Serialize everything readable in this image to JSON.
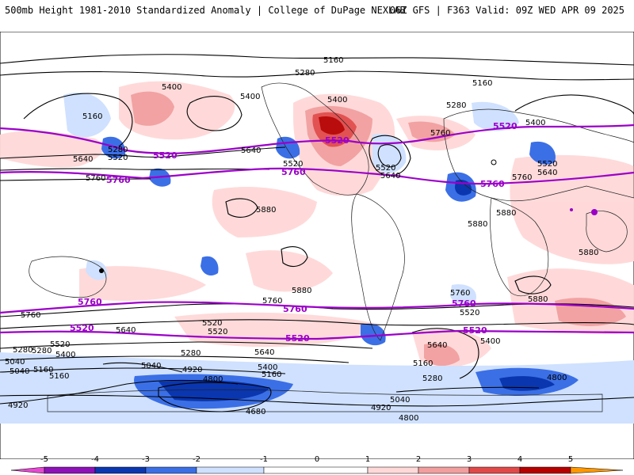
{
  "header": {
    "left": "500mb Height 1981-2010 Standardized Anomaly | College of DuPage NEXLAB",
    "right": "06Z GFS | F363 Valid: 09Z WED APR 09 2025"
  },
  "colors": {
    "neg5": "#e44ad1",
    "neg4": "#8d11b7",
    "neg3": "#0a36b0",
    "neg2": "#3b6fe6",
    "neg1": "#cfe1ff",
    "zero": "#ffffff",
    "pos1": "#ffd8d8",
    "pos2": "#f29e9e",
    "pos3": "#e14949",
    "pos4": "#b60000",
    "pos5": "#ff9800",
    "purple_contour": "#9b00c8",
    "black_contour": "#000000"
  },
  "map_labels": {
    "c5160_n": "5160",
    "c5280_n": "5280",
    "c5400_na": "5400",
    "c5400_nb": "5400",
    "c5400_na2": "5400",
    "c5160_w": "5160",
    "c5280_w": "5280",
    "c5520_w": "5520",
    "c5640_w": "5640",
    "c5760_w": "5760",
    "p5520_a": "5520",
    "p5760_a": "5760",
    "p5520_b": "5520",
    "p5760_b": "5760",
    "c5520_b": "5520",
    "c5640_b": "5640",
    "c5520_c": "5520",
    "c5640_c": "5640",
    "p5520_c": "5520",
    "c5160_ne": "5160",
    "c5280_ne": "5280",
    "c5760_e": "5760",
    "p5520_e": "5520",
    "c5400_e": "5400",
    "c5520_e": "5520",
    "c5640_e": "5640",
    "c5760_e2": "5760",
    "p5760_e": "5760",
    "c5880_a": "5880",
    "c5880_b": "5880",
    "c5880_c": "5880",
    "c5880_d": "5880",
    "c5880_e": "5880",
    "c5880_f": "5880",
    "p5760_s": "5760",
    "c5760_s": "5760",
    "p5520_s": "5520",
    "c5640_s": "5640",
    "c5520_s2": "5520",
    "c5760_s2": "5760",
    "p5760_s2": "5760",
    "c5760_s3": "5760",
    "p5760_s3": "5760",
    "c5760_s4": "5760",
    "c5520_s3": "5520",
    "p5520_s2": "5520",
    "p5520_s3": "5520",
    "c5400_s": "5400",
    "c5640_s2": "5640",
    "c5280_s": "5280",
    "c5160_s": "5160",
    "c5040_s": "5040",
    "c5520_s4": "5520",
    "c5400_s2": "5400",
    "c5280_s2": "5280",
    "c5160_s2": "5160",
    "c5040_s2": "5040",
    "c5280_s3": "5280",
    "c5160_s3": "5160",
    "c5040_s3": "5040",
    "c4920_s": "4920",
    "c4800_s": "4800",
    "c4920_w": "4920",
    "c4680_s": "4680",
    "c4920_s2": "4920",
    "c4800_s2": "4800",
    "c4800_se": "4800",
    "c5400_s3": "5400",
    "c5640_s3": "5640",
    "c5280_s4": "5280",
    "c5160_s4": "5160",
    "c5040_s4": "5040",
    "c5520_s5": "5520"
  },
  "colorbar": {
    "ticks": [
      "-5",
      "-4",
      "-3",
      "-2",
      "-1",
      "0",
      "1",
      "2",
      "3",
      "4",
      "5"
    ]
  }
}
